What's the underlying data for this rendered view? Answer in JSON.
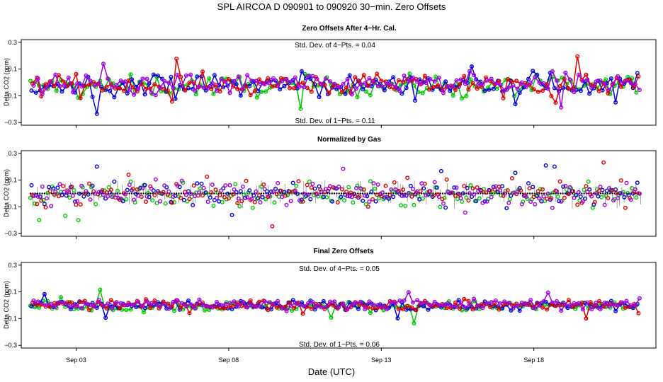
{
  "chart_data": {
    "type": "scatter",
    "title": "SPL    AIRCOA D   090901 to 090920   30−min. Zero Offsets",
    "xlabel": "Date (UTC)",
    "x_ticks": [
      "Sep 03",
      "Sep 08",
      "Sep 13",
      "Sep 18"
    ],
    "x_tick_days": [
      3,
      8,
      13,
      18
    ],
    "xlim_days": [
      1.2,
      22.0
    ],
    "data_range_days": [
      1.5,
      21.5
    ],
    "colors": {
      "gas1": "#00c800",
      "gas2": "#0000dd",
      "gas3": "#e00000",
      "gas4": "#a000e0",
      "ref": "#000000"
    },
    "panels": [
      {
        "title": "Zero Offsets After 4−Hr. Cal.",
        "ylabel": "Delta CO2 (ppm)",
        "yticks": [
          "0.3",
          "0.1",
          "−0.1",
          "−0.3"
        ],
        "ytick_values": [
          0.3,
          0.1,
          -0.1,
          -0.3
        ],
        "ylim": [
          -0.32,
          0.32
        ],
        "annotation_top": "Std. Dev. of 4−Pts. = 0.04",
        "annotation_bottom": "Std. Dev. of 1−Pts. = 0.11",
        "style": "lines+points",
        "offset": -0.02,
        "spread": 0.1
      },
      {
        "title": "Normalized by Gas",
        "ylabel": "Delta CO2 (ppm)",
        "yticks": [
          "0.3",
          "0.1",
          "−0.1",
          "−0.3"
        ],
        "ytick_values": [
          0.3,
          0.1,
          -0.1,
          -0.3
        ],
        "ylim": [
          -0.32,
          0.32
        ],
        "annotation_top": "",
        "annotation_bottom": "",
        "style": "points+ref",
        "offset": 0.0,
        "spread": 0.11
      },
      {
        "title": "Final Zero Offsets",
        "ylabel": "Delta CO2 (ppm)",
        "yticks": [
          "0.3",
          "0.1",
          "−0.1",
          "−0.3"
        ],
        "ytick_values": [
          0.3,
          0.1,
          -0.1,
          -0.3
        ],
        "ylim": [
          -0.32,
          0.32
        ],
        "annotation_top": "Std. Dev. of 4−Pts. = 0.05",
        "annotation_bottom": "Std. Dev. of 1−Pts. = 0.06",
        "style": "lines+points",
        "offset": 0.0,
        "spread": 0.05
      }
    ],
    "series": [
      {
        "name": "gas1",
        "color_key": "gas1"
      },
      {
        "name": "gas2",
        "color_key": "gas2"
      },
      {
        "name": "gas3",
        "color_key": "gas3"
      },
      {
        "name": "gas4",
        "color_key": "gas4"
      }
    ],
    "points_per_series": 140
  }
}
